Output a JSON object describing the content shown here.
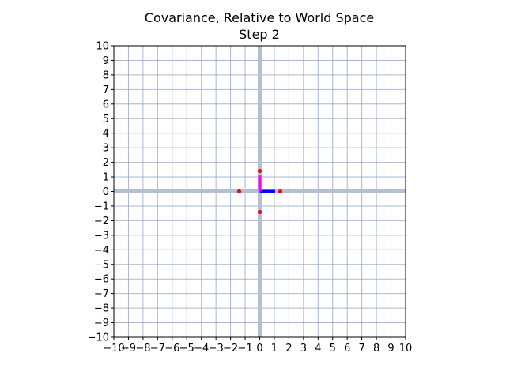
{
  "chart_data": {
    "type": "scatter",
    "title": "Covariance, Relative to World Space",
    "subtitle": "Step 2",
    "xlabel": "",
    "ylabel": "",
    "xlim": [
      -10,
      10
    ],
    "ylim": [
      -10,
      10
    ],
    "xticks": [
      -10,
      -9,
      -8,
      -7,
      -6,
      -5,
      -4,
      -3,
      -2,
      -1,
      0,
      1,
      2,
      3,
      4,
      5,
      6,
      7,
      8,
      9,
      10
    ],
    "yticks": [
      -10,
      -9,
      -8,
      -7,
      -6,
      -5,
      -4,
      -3,
      -2,
      -1,
      0,
      1,
      2,
      3,
      4,
      5,
      6,
      7,
      8,
      9,
      10
    ],
    "xtick_labels": [
      "−10",
      "−9",
      "−8",
      "−7",
      "−6",
      "−5",
      "−4",
      "−3",
      "−2",
      "−1",
      "0",
      "1",
      "2",
      "3",
      "4",
      "5",
      "6",
      "7",
      "8",
      "9",
      "10"
    ],
    "ytick_labels": [
      "−10",
      "−9",
      "−8",
      "−7",
      "−6",
      "−5",
      "−4",
      "−3",
      "−2",
      "−1",
      "0",
      "1",
      "2",
      "3",
      "4",
      "5",
      "6",
      "7",
      "8",
      "9",
      "10"
    ],
    "grid": true,
    "grid_color": "#8da0c0",
    "world_axes": {
      "color": "#b4bfd6",
      "x": 0,
      "y": 0
    },
    "basis_vectors": [
      {
        "color": "#0000ff",
        "from": [
          0,
          0
        ],
        "to": [
          1.05,
          0
        ]
      },
      {
        "color": "#ff00ff",
        "from": [
          0,
          0
        ],
        "to": [
          0,
          1.1
        ]
      }
    ],
    "points": {
      "color": "#ff0000",
      "x": [
        0,
        1.41,
        -1.41,
        0
      ],
      "y": [
        1.41,
        0,
        0,
        -1.41
      ]
    }
  }
}
